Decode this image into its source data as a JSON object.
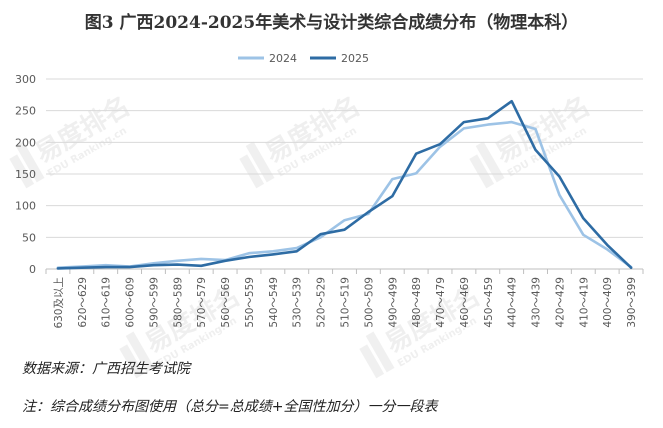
{
  "title": "图3 广西2024-2025年美术与设计类综合成绩分布（物理本科）",
  "source_note": "数据来源：广西招生考试院",
  "footnote": "注：综合成绩分布图使用（总分=总成绩+全国性加分）一分一段表",
  "watermark": {
    "text_cn": "易度排名",
    "text_en": "EDU Ranking.cn"
  },
  "chart_data": {
    "type": "line",
    "title": "图3 广西2024-2025年美术与设计类综合成绩分布（物理本科）",
    "xlabel": "",
    "ylabel": "",
    "ylim": [
      0,
      300
    ],
    "yticks": [
      0,
      50,
      100,
      150,
      200,
      250,
      300
    ],
    "grid": true,
    "legend_position": "top-center",
    "categories": [
      "630及以上",
      "620～629",
      "610～619",
      "600～609",
      "590～599",
      "580～589",
      "570～579",
      "560～569",
      "550～559",
      "540～549",
      "530～539",
      "520～529",
      "510～519",
      "500～509",
      "490～499",
      "480～489",
      "470～479",
      "460～469",
      "450～459",
      "440～449",
      "430～439",
      "420～429",
      "410～419",
      "400～409",
      "390～399"
    ],
    "series": [
      {
        "name": "2024",
        "color": "#9dc3e6",
        "values": [
          2,
          4,
          6,
          4,
          9,
          13,
          16,
          14,
          25,
          28,
          33,
          50,
          77,
          87,
          142,
          151,
          193,
          222,
          228,
          232,
          221,
          117,
          54,
          31,
          3
        ]
      },
      {
        "name": "2025",
        "color": "#2e6ca4",
        "values": [
          1,
          2,
          3,
          3,
          6,
          7,
          5,
          13,
          19,
          23,
          28,
          55,
          62,
          90,
          115,
          182,
          197,
          232,
          238,
          265,
          188,
          146,
          80,
          38,
          2
        ]
      }
    ]
  }
}
